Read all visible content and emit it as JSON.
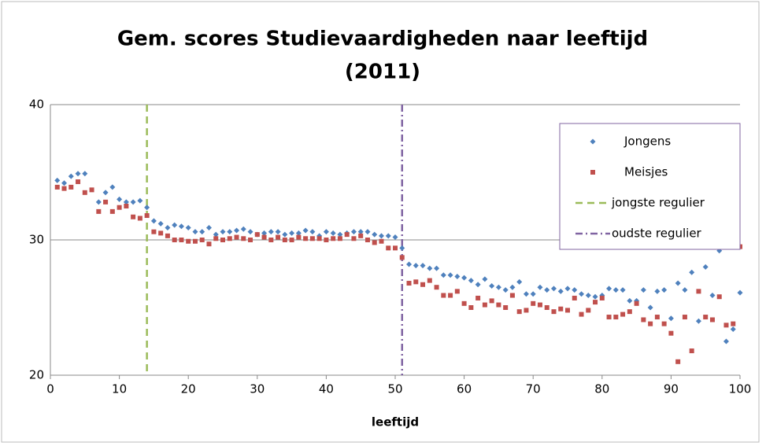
{
  "chart_data": {
    "type": "scatter",
    "title": [
      "Gem. scores Studievaardigheden naar leeftijd",
      "(2011)"
    ],
    "x_label": "leeftijd",
    "x": [
      1,
      2,
      3,
      4,
      5,
      6,
      7,
      8,
      9,
      10,
      11,
      12,
      13,
      14,
      15,
      16,
      17,
      18,
      19,
      20,
      21,
      22,
      23,
      24,
      25,
      26,
      27,
      28,
      29,
      30,
      31,
      32,
      33,
      34,
      35,
      36,
      37,
      38,
      39,
      40,
      41,
      42,
      43,
      44,
      45,
      46,
      47,
      48,
      49,
      50,
      51,
      52,
      53,
      54,
      55,
      56,
      57,
      58,
      59,
      60,
      61,
      62,
      63,
      64,
      65,
      66,
      67,
      68,
      69,
      70,
      71,
      72,
      73,
      74,
      75,
      76,
      77,
      78,
      79,
      80,
      81,
      82,
      83,
      84,
      85,
      86,
      87,
      88,
      89,
      90,
      91,
      92,
      93,
      94,
      95,
      96,
      97,
      98,
      99,
      100
    ],
    "series": [
      {
        "name": "Jongens",
        "color": "#4f81bd",
        "marker": "diamond",
        "values": [
          34.4,
          34.2,
          34.7,
          34.9,
          34.9,
          null,
          32.8,
          33.5,
          33.9,
          33.0,
          32.8,
          32.8,
          32.9,
          32.4,
          31.4,
          31.2,
          30.9,
          31.1,
          31.0,
          30.9,
          30.6,
          30.6,
          30.9,
          30.4,
          30.6,
          30.6,
          30.7,
          30.8,
          30.6,
          30.4,
          30.5,
          30.6,
          30.6,
          30.4,
          30.5,
          30.5,
          30.7,
          30.6,
          30.3,
          30.6,
          30.5,
          30.4,
          30.5,
          30.6,
          30.6,
          30.6,
          30.4,
          30.3,
          30.3,
          30.2,
          29.4,
          28.2,
          28.1,
          28.1,
          27.9,
          27.9,
          27.4,
          27.4,
          27.3,
          27.2,
          27.0,
          26.7,
          27.1,
          26.6,
          26.5,
          26.3,
          26.5,
          26.9,
          26.0,
          26.0,
          26.5,
          26.3,
          26.4,
          26.2,
          26.4,
          26.3,
          26.0,
          25.9,
          25.8,
          25.9,
          26.4,
          26.3,
          26.3,
          25.5,
          25.5,
          26.3,
          25.0,
          26.2,
          26.3,
          24.2,
          26.8,
          26.3,
          27.6,
          24.0,
          28.0,
          25.9,
          29.2,
          22.5,
          23.4,
          26.1
        ]
      },
      {
        "name": "Meisjes",
        "color": "#c0504d",
        "marker": "square",
        "values": [
          33.9,
          33.8,
          33.9,
          34.3,
          33.5,
          33.7,
          32.1,
          32.8,
          32.1,
          32.4,
          32.5,
          31.7,
          31.6,
          31.8,
          30.6,
          30.5,
          30.3,
          30.0,
          30.0,
          29.9,
          29.9,
          30.0,
          29.7,
          30.1,
          30.0,
          30.1,
          30.2,
          30.1,
          30.0,
          30.4,
          30.2,
          30.0,
          30.2,
          30.0,
          30.0,
          30.2,
          30.1,
          30.1,
          30.1,
          30.0,
          30.1,
          30.1,
          30.4,
          30.1,
          30.3,
          30.0,
          29.8,
          29.9,
          29.4,
          29.4,
          28.7,
          26.8,
          26.9,
          26.7,
          27.0,
          26.5,
          25.9,
          25.9,
          26.2,
          25.3,
          25.0,
          25.7,
          25.2,
          25.5,
          25.2,
          25.0,
          25.9,
          24.7,
          24.8,
          25.3,
          25.2,
          25.0,
          24.7,
          24.9,
          24.8,
          25.7,
          24.5,
          24.8,
          25.4,
          25.7,
          24.3,
          24.3,
          24.5,
          24.7,
          25.3,
          24.1,
          23.8,
          24.3,
          23.8,
          23.1,
          21.0,
          24.3,
          21.8,
          26.2,
          24.3,
          24.1,
          25.8,
          23.7,
          23.8,
          29.5
        ]
      }
    ],
    "vlines": [
      {
        "name": "jongste regulier",
        "color": "#9bbb59",
        "dash": "dashed",
        "x": 14
      },
      {
        "name": "oudste regulier",
        "color": "#8064a2",
        "dash": "dashdot",
        "x": 51
      }
    ],
    "xlim": [
      0,
      100
    ],
    "xticks": [
      0,
      10,
      20,
      30,
      40,
      50,
      60,
      70,
      80,
      90,
      100
    ],
    "ylim": [
      20,
      40
    ],
    "yticks": [
      20,
      30,
      40
    ],
    "grid": true,
    "legend": "upper right"
  }
}
